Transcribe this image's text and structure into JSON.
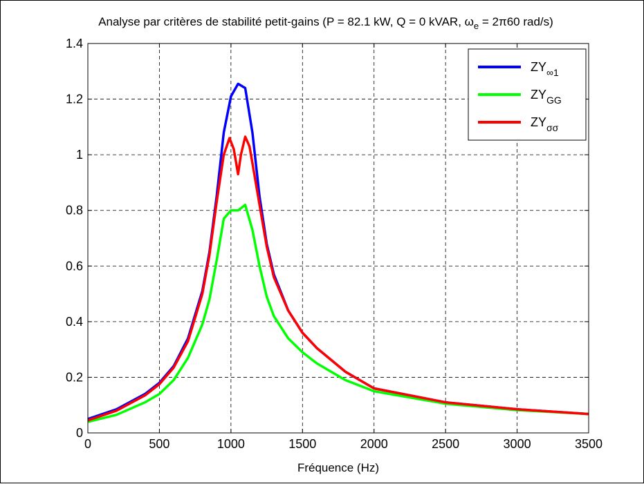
{
  "chart_data": {
    "type": "line",
    "title_parts": {
      "pre": "Analyse par critères de stabilité petit-gains (P = 82.1 kW, Q = 0 kVAR, ω",
      "sub": "e",
      "post": " = 2π60 rad/s)"
    },
    "xlabel": "Fréquence (Hz)",
    "ylabel": "",
    "xlim": [
      0,
      3500
    ],
    "ylim": [
      0,
      1.4
    ],
    "xticks": [
      0,
      500,
      1000,
      1500,
      2000,
      2500,
      3000,
      3500
    ],
    "yticks": [
      0,
      0.2,
      0.4,
      0.6,
      0.8,
      1,
      1.2,
      1.4
    ],
    "xtick_labels": [
      "0",
      "500",
      "1000",
      "1500",
      "2000",
      "2500",
      "3000",
      "3500"
    ],
    "ytick_labels": [
      "0",
      "0.2",
      "0.4",
      "0.6",
      "0.8",
      "1",
      "1.2",
      "1.4"
    ],
    "grid": true,
    "legend_position": "top-right",
    "series": [
      {
        "name": "ZY∞1",
        "legend_main": "ZY",
        "legend_sub": "∞1",
        "color": "#0000ff",
        "x": [
          0,
          200,
          400,
          500,
          600,
          700,
          800,
          850,
          900,
          950,
          1000,
          1050,
          1100,
          1150,
          1200,
          1250,
          1300,
          1400,
          1500,
          1600,
          1800,
          2000,
          2500,
          3000,
          3500
        ],
        "y": [
          0.05,
          0.085,
          0.14,
          0.18,
          0.24,
          0.34,
          0.51,
          0.65,
          0.85,
          1.08,
          1.21,
          1.255,
          1.24,
          1.08,
          0.85,
          0.68,
          0.57,
          0.44,
          0.36,
          0.305,
          0.22,
          0.16,
          0.11,
          0.085,
          0.068
        ]
      },
      {
        "name": "ZYGG",
        "legend_main": "ZY",
        "legend_sub": "GG",
        "color": "#00ff00",
        "x": [
          0,
          200,
          400,
          500,
          600,
          700,
          800,
          850,
          900,
          950,
          1000,
          1050,
          1100,
          1150,
          1200,
          1250,
          1300,
          1400,
          1500,
          1600,
          1800,
          2000,
          2500,
          3000,
          3500
        ],
        "y": [
          0.04,
          0.065,
          0.11,
          0.14,
          0.19,
          0.27,
          0.39,
          0.48,
          0.62,
          0.77,
          0.8,
          0.8,
          0.82,
          0.73,
          0.6,
          0.49,
          0.42,
          0.34,
          0.29,
          0.25,
          0.19,
          0.15,
          0.105,
          0.082,
          0.068
        ]
      },
      {
        "name": "ZYσσ",
        "legend_main": "ZY",
        "legend_sub": "σσ",
        "color": "#ff0000",
        "x": [
          0,
          200,
          400,
          500,
          600,
          700,
          800,
          850,
          900,
          950,
          990,
          1020,
          1050,
          1070,
          1100,
          1130,
          1150,
          1200,
          1250,
          1300,
          1400,
          1500,
          1600,
          1800,
          2000,
          2500,
          3000,
          3500
        ],
        "y": [
          0.045,
          0.08,
          0.135,
          0.175,
          0.235,
          0.33,
          0.5,
          0.64,
          0.83,
          1.0,
          1.06,
          1.02,
          0.93,
          1.0,
          1.065,
          1.03,
          0.97,
          0.82,
          0.67,
          0.56,
          0.44,
          0.36,
          0.305,
          0.22,
          0.16,
          0.11,
          0.085,
          0.068
        ]
      }
    ]
  }
}
